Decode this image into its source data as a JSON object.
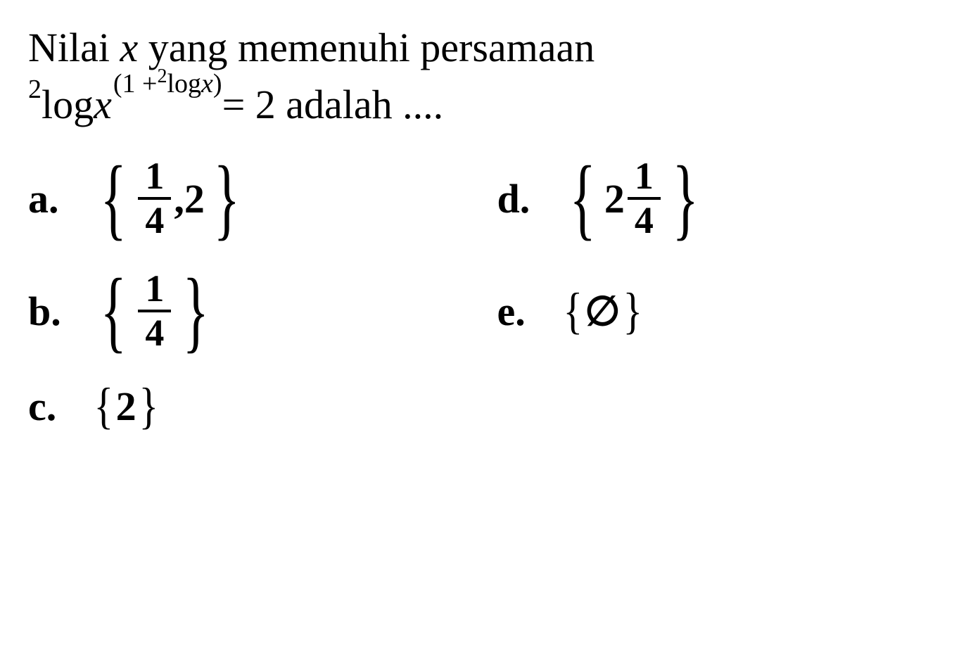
{
  "question": {
    "line1": "Nilai x yang memenuhi persamaan",
    "equation_prefix_base": "2",
    "equation_log": "log ",
    "equation_var": "x",
    "exp_open": "(1 + ",
    "exp_base": "2",
    "exp_log": "log ",
    "exp_var": "x",
    "exp_close": ")",
    "equation_suffix": " = 2 adalah ...."
  },
  "options": {
    "a": {
      "label": "a.",
      "frac_num": "1",
      "frac_den": "4",
      "comma": ",",
      "second": "2"
    },
    "b": {
      "label": "b.",
      "frac_num": "1",
      "frac_den": "4"
    },
    "c": {
      "label": "c.",
      "value": "2"
    },
    "d": {
      "label": "d.",
      "whole": "2",
      "frac_num": "1",
      "frac_den": "4"
    },
    "e": {
      "label": "e.",
      "symbol": "∅"
    }
  },
  "styling": {
    "background_color": "#ffffff",
    "text_color": "#000000",
    "font_family": "Times New Roman",
    "question_fontsize": 58,
    "option_fontsize": 58,
    "fraction_fontsize": 54,
    "brace_large_fontsize": 130,
    "brace_small_fontsize": 72,
    "fraction_border_width": 4,
    "label_weight": "bold"
  }
}
